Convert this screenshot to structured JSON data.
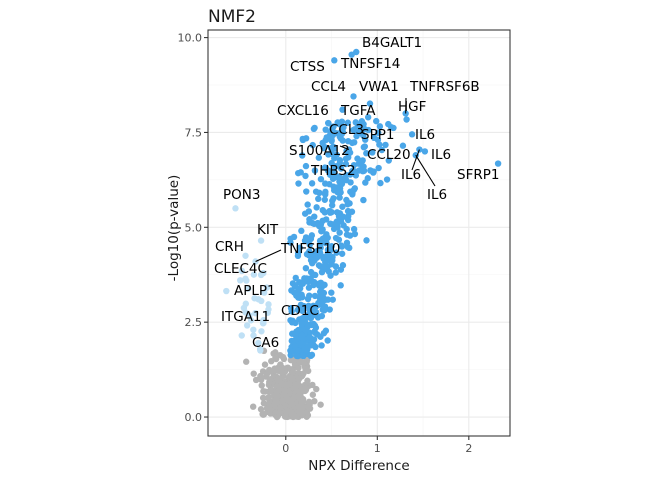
{
  "chart_data": {
    "type": "scatter",
    "title": "NMF2",
    "xlabel": "NPX Difference",
    "ylabel": "-Log10(p-value)",
    "xlim": [
      -0.85,
      2.45
    ],
    "ylim": [
      -0.5,
      10.2
    ],
    "x_ticks": [
      0,
      1,
      2
    ],
    "x_tick_labels": [
      "0",
      "1",
      "2"
    ],
    "y_ticks": [
      0,
      2.5,
      5,
      7.5,
      10
    ],
    "y_tick_labels": [
      "0.0",
      "2.5",
      "5.0",
      "7.5",
      "10.0"
    ],
    "grid": true,
    "colors": {
      "significant_up": "#4aa6e8",
      "significant_down": "#bfe0f5",
      "not_significant": "#b3b3b3"
    },
    "labeled_points": [
      {
        "label": "B4GALT1",
        "x": 0.77,
        "y": 9.62,
        "group": "significant_up"
      },
      {
        "label": "CTSS",
        "x": 0.53,
        "y": 9.4,
        "group": "significant_up"
      },
      {
        "label": "TNFSF14",
        "x": 0.72,
        "y": 9.55,
        "group": "significant_up"
      },
      {
        "label": "CCL4",
        "x": 0.74,
        "y": 8.45,
        "group": "significant_up"
      },
      {
        "label": "VWA1",
        "x": 0.92,
        "y": 8.26,
        "group": "significant_up"
      },
      {
        "label": "TNFRSF6B",
        "x": 1.31,
        "y": 8.0,
        "group": "significant_up"
      },
      {
        "label": "HGF",
        "x": 1.32,
        "y": 7.84,
        "group": "significant_up"
      },
      {
        "label": "CXCL16",
        "x": 0.62,
        "y": 8.1,
        "group": "significant_up"
      },
      {
        "label": "TGFA",
        "x": 0.9,
        "y": 7.9,
        "group": "significant_up"
      },
      {
        "label": "CCL3",
        "x": 0.85,
        "y": 7.72,
        "group": "significant_up"
      },
      {
        "label": "SPP1",
        "x": 1.12,
        "y": 7.72,
        "group": "significant_up"
      },
      {
        "label": "IL6",
        "x": 1.38,
        "y": 7.45,
        "group": "significant_up"
      },
      {
        "label": "S100A12",
        "x": 0.69,
        "y": 7.05,
        "group": "significant_up"
      },
      {
        "label": "CCL20",
        "x": 1.28,
        "y": 7.15,
        "group": "significant_up"
      },
      {
        "label": "IL6",
        "x": 1.52,
        "y": 7.0,
        "group": "significant_up"
      },
      {
        "label": "THBS2",
        "x": 0.85,
        "y": 6.6,
        "group": "significant_up"
      },
      {
        "label": "IL6",
        "x": 1.46,
        "y": 7.05,
        "group": "significant_up"
      },
      {
        "label": "SFRP1",
        "x": 2.32,
        "y": 6.68,
        "group": "significant_up"
      },
      {
        "label": "IL6",
        "x": 1.42,
        "y": 6.9,
        "group": "significant_up"
      },
      {
        "label": "PON3",
        "x": -0.55,
        "y": 5.5,
        "group": "significant_down"
      },
      {
        "label": "KIT",
        "x": -0.27,
        "y": 4.65,
        "group": "significant_down"
      },
      {
        "label": "CRH",
        "x": -0.44,
        "y": 4.25,
        "group": "significant_down"
      },
      {
        "label": "TNFSF10",
        "x": -0.33,
        "y": 4.1,
        "group": "significant_down"
      },
      {
        "label": "CLEC4C",
        "x": -0.48,
        "y": 3.85,
        "group": "significant_down"
      },
      {
        "label": "APLP1",
        "x": -0.65,
        "y": 3.32,
        "group": "significant_down"
      },
      {
        "label": "CD1C",
        "x": 0.18,
        "y": 2.8,
        "group": "significant_up"
      },
      {
        "label": "ITGA11",
        "x": -0.38,
        "y": 2.55,
        "group": "significant_down"
      },
      {
        "label": "CA6",
        "x": -0.3,
        "y": 1.95,
        "group": "significant_down"
      }
    ],
    "background_points": {
      "significant_up_count": 520,
      "significant_down_count": 30,
      "not_significant_count": 500
    }
  }
}
